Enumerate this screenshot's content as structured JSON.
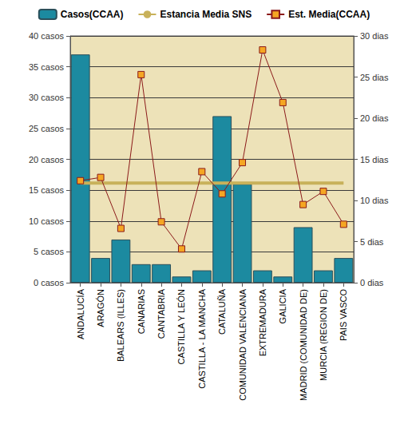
{
  "chart_data": {
    "type": "bar",
    "categories": [
      "ANDALUCÍA",
      "ARAGÓN",
      "BALEARS (ILLES)",
      "CANARIAS",
      "CANTABRIA",
      "CASTILLA Y LEÓN",
      "CASTILLA - LA MANCHA",
      "CATALUÑA",
      "COMUNIDAD VALENCIANA",
      "EXTREMADURA",
      "GALICIA",
      "MADRID (COMUNIDAD DE)",
      "MURCIA (REGION DE)",
      "PAIS VASCO"
    ],
    "series": [
      {
        "name": "Casos(CCAA)",
        "type": "bar",
        "color": "#1c8aa0",
        "values": [
          37,
          4,
          7,
          3,
          3,
          1,
          2,
          27,
          16,
          2,
          1,
          9,
          2,
          4
        ]
      },
      {
        "name": "Estancia Media SNS",
        "type": "line",
        "axis": "y2",
        "color": "#c8b15a",
        "marker": "none",
        "values": [
          12.1,
          12.1,
          12.1,
          12.1,
          12.1,
          12.1,
          12.1,
          12.1,
          12.1,
          12.1,
          12.1,
          12.1,
          12.1,
          12.1
        ]
      },
      {
        "name": "Est. Media(CCAA)",
        "type": "line",
        "axis": "y2",
        "color": "#8b1a1a",
        "marker": "square",
        "values": [
          12.4,
          12.8,
          6.6,
          25.3,
          7.4,
          4.1,
          13.5,
          10.8,
          14.6,
          28.3,
          21.9,
          9.5,
          11.1,
          7.1
        ]
      }
    ],
    "ylim": [
      0,
      40
    ],
    "yticks": [
      {
        "value": 0,
        "label": "0 casos"
      },
      {
        "value": 5,
        "label": "5 casos"
      },
      {
        "value": 10,
        "label": "10 casos"
      },
      {
        "value": 15,
        "label": "15 casos"
      },
      {
        "value": 20,
        "label": "20 casos"
      },
      {
        "value": 25,
        "label": "25 casos"
      },
      {
        "value": 30,
        "label": "30 casos"
      },
      {
        "value": 35,
        "label": "35 casos"
      },
      {
        "value": 40,
        "label": "40 casos"
      }
    ],
    "y2lim": [
      0,
      30
    ],
    "y2ticks": [
      {
        "value": 0,
        "label": "0 dias"
      },
      {
        "value": 5,
        "label": "5 dias"
      },
      {
        "value": 10,
        "label": "10 dias"
      },
      {
        "value": 15,
        "label": "15 dias"
      },
      {
        "value": 20,
        "label": "20 dias"
      },
      {
        "value": 25,
        "label": "25 dias"
      },
      {
        "value": 30,
        "label": "30 dias"
      }
    ],
    "grid": true,
    "legend": "top"
  }
}
